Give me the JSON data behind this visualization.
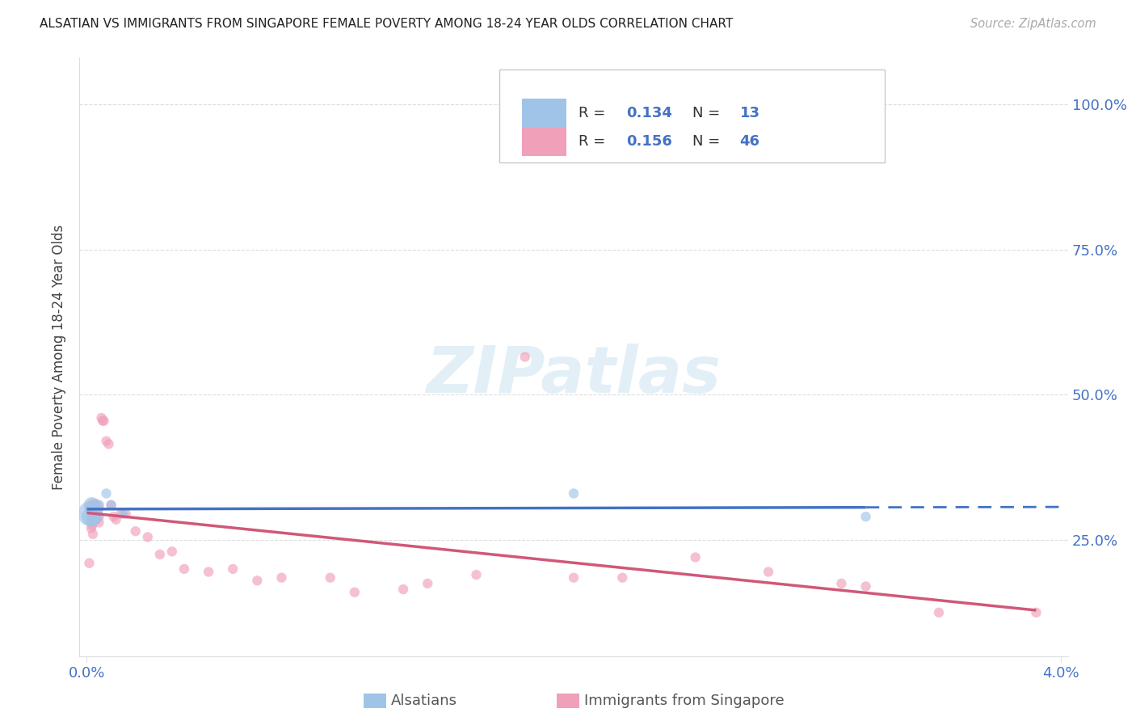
{
  "title": "ALSATIAN VS IMMIGRANTS FROM SINGAPORE FEMALE POVERTY AMONG 18-24 YEAR OLDS CORRELATION CHART",
  "source": "Source: ZipAtlas.com",
  "ylabel": "Female Poverty Among 18-24 Year Olds",
  "legend_label1": "Alsatians",
  "legend_label2": "Immigrants from Singapore",
  "R1": "0.134",
  "N1": "13",
  "R2": "0.156",
  "N2": "46",
  "color_alsatian": "#a0c4e8",
  "color_singapore": "#f0a0b8",
  "color_line_alsatian": "#4472c4",
  "color_line_singapore": "#d05878",
  "alsatian_x": [
    0.00015,
    0.00018,
    0.0002,
    0.00022,
    0.00025,
    0.0003,
    0.00035,
    0.0005,
    0.0008,
    0.001,
    0.0015,
    0.02,
    0.032
  ],
  "alsatian_y": [
    0.295,
    0.29,
    0.31,
    0.285,
    0.3,
    0.29,
    0.31,
    0.31,
    0.33,
    0.31,
    0.295,
    0.33,
    0.29
  ],
  "alsatian_size": [
    500,
    300,
    200,
    150,
    120,
    100,
    90,
    85,
    80,
    80,
    75,
    80,
    80
  ],
  "singapore_x": [
    0.0001,
    0.00015,
    0.00018,
    0.0002,
    0.00022,
    0.00025,
    0.00025,
    0.0003,
    0.00035,
    0.0004,
    0.0004,
    0.0005,
    0.0005,
    0.0006,
    0.00065,
    0.0007,
    0.0008,
    0.0009,
    0.001,
    0.0011,
    0.0012,
    0.0014,
    0.0016,
    0.002,
    0.0025,
    0.003,
    0.0035,
    0.004,
    0.005,
    0.006,
    0.007,
    0.008,
    0.01,
    0.011,
    0.013,
    0.014,
    0.016,
    0.018,
    0.02,
    0.022,
    0.025,
    0.028,
    0.031,
    0.032,
    0.035,
    0.039
  ],
  "singapore_y": [
    0.21,
    0.3,
    0.27,
    0.28,
    0.275,
    0.26,
    0.29,
    0.305,
    0.285,
    0.295,
    0.285,
    0.29,
    0.28,
    0.46,
    0.455,
    0.455,
    0.42,
    0.415,
    0.31,
    0.29,
    0.285,
    0.295,
    0.295,
    0.265,
    0.255,
    0.225,
    0.23,
    0.2,
    0.195,
    0.2,
    0.18,
    0.185,
    0.185,
    0.16,
    0.165,
    0.175,
    0.19,
    0.565,
    0.185,
    0.185,
    0.22,
    0.195,
    0.175,
    0.17,
    0.125,
    0.125
  ],
  "singapore_size": [
    80,
    80,
    80,
    80,
    80,
    80,
    80,
    280,
    80,
    80,
    80,
    80,
    80,
    80,
    80,
    80,
    80,
    80,
    80,
    80,
    80,
    80,
    80,
    80,
    80,
    80,
    80,
    80,
    80,
    80,
    80,
    80,
    80,
    80,
    80,
    80,
    80,
    80,
    80,
    80,
    80,
    80,
    80,
    80,
    80,
    80
  ],
  "xlim": [
    -0.0003,
    0.0403
  ],
  "ylim": [
    0.05,
    1.08
  ],
  "xticks": [
    0.0,
    0.04
  ],
  "xticklabels": [
    "0.0%",
    "4.0%"
  ],
  "yticks_right": [
    0.25,
    0.5,
    0.75,
    1.0
  ],
  "yticklabels_right": [
    "25.0%",
    "50.0%",
    "75.0%",
    "100.0%"
  ],
  "watermark": "ZIPatlas",
  "background_color": "#ffffff",
  "grid_color": "#dddddd",
  "tick_color": "#4472c4",
  "title_color": "#222222",
  "source_color": "#aaaaaa"
}
